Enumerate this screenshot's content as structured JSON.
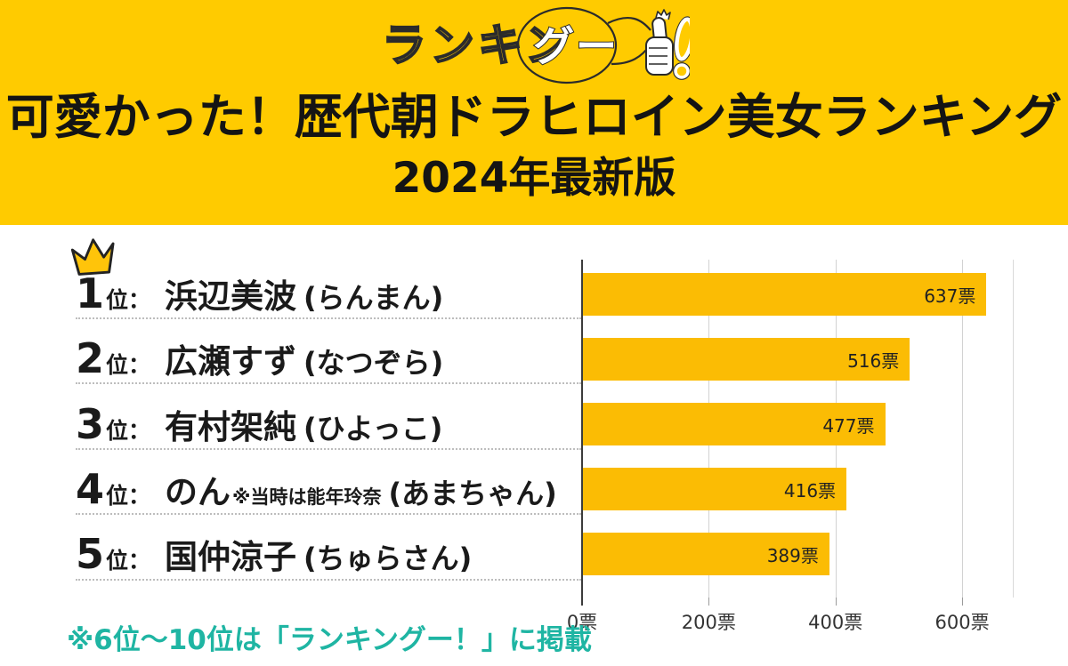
{
  "colors": {
    "banner_yellow": "#FFCB00",
    "bar_yellow": "#FBBC04",
    "crown_yellow": "#FFC40A",
    "note_teal": "#1FB5A3"
  },
  "logo": {
    "text_outline": "ランキン",
    "text_bubble": "グー",
    "exclamation": "！"
  },
  "header": {
    "title_line1": "可愛かった！歴代朝ドラヒロイン美女ランキング",
    "title_line2": "2024年最新版"
  },
  "ranking": [
    {
      "rank": "1",
      "suffix": "位：",
      "name": "浜辺美波",
      "note": "",
      "show": "(らんまん)",
      "votes": 637,
      "votes_label": "637票"
    },
    {
      "rank": "2",
      "suffix": "位：",
      "name": "広瀬すず",
      "note": "",
      "show": "(なつぞら)",
      "votes": 516,
      "votes_label": "516票"
    },
    {
      "rank": "3",
      "suffix": "位：",
      "name": "有村架純",
      "note": "",
      "show": "(ひよっこ)",
      "votes": 477,
      "votes_label": "477票"
    },
    {
      "rank": "4",
      "suffix": "位：",
      "name": "のん",
      "note": "※当時は能年玲奈",
      "show": "(あまちゃん)",
      "votes": 416,
      "votes_label": "416票"
    },
    {
      "rank": "5",
      "suffix": "位：",
      "name": "国仲涼子",
      "note": "",
      "show": "(ちゅらさん)",
      "votes": 389,
      "votes_label": "389票"
    }
  ],
  "chart_data": {
    "type": "bar",
    "orientation": "horizontal",
    "title": "可愛かった！歴代朝ドラヒロイン美女ランキング 2024年最新版",
    "categories": [
      "浜辺美波 (らんまん)",
      "広瀬すず (なつぞら)",
      "有村架純 (ひよっこ)",
      "のん (あまちゃん)",
      "国仲涼子 (ちゅらさん)"
    ],
    "values": [
      637,
      516,
      477,
      416,
      389
    ],
    "value_labels": [
      "637票",
      "516票",
      "477票",
      "416票",
      "389票"
    ],
    "xlabel": "票",
    "x_ticks": [
      {
        "value": 0,
        "label": "0票"
      },
      {
        "value": 200,
        "label": "200票"
      },
      {
        "value": 400,
        "label": "400票"
      },
      {
        "value": 600,
        "label": "600票"
      }
    ],
    "xlim": [
      0,
      680
    ],
    "bar_color": "#FBBC04",
    "grid": true,
    "legend": false
  },
  "footer": {
    "note": "※6位〜10位は「ランキングー！」に掲載"
  }
}
